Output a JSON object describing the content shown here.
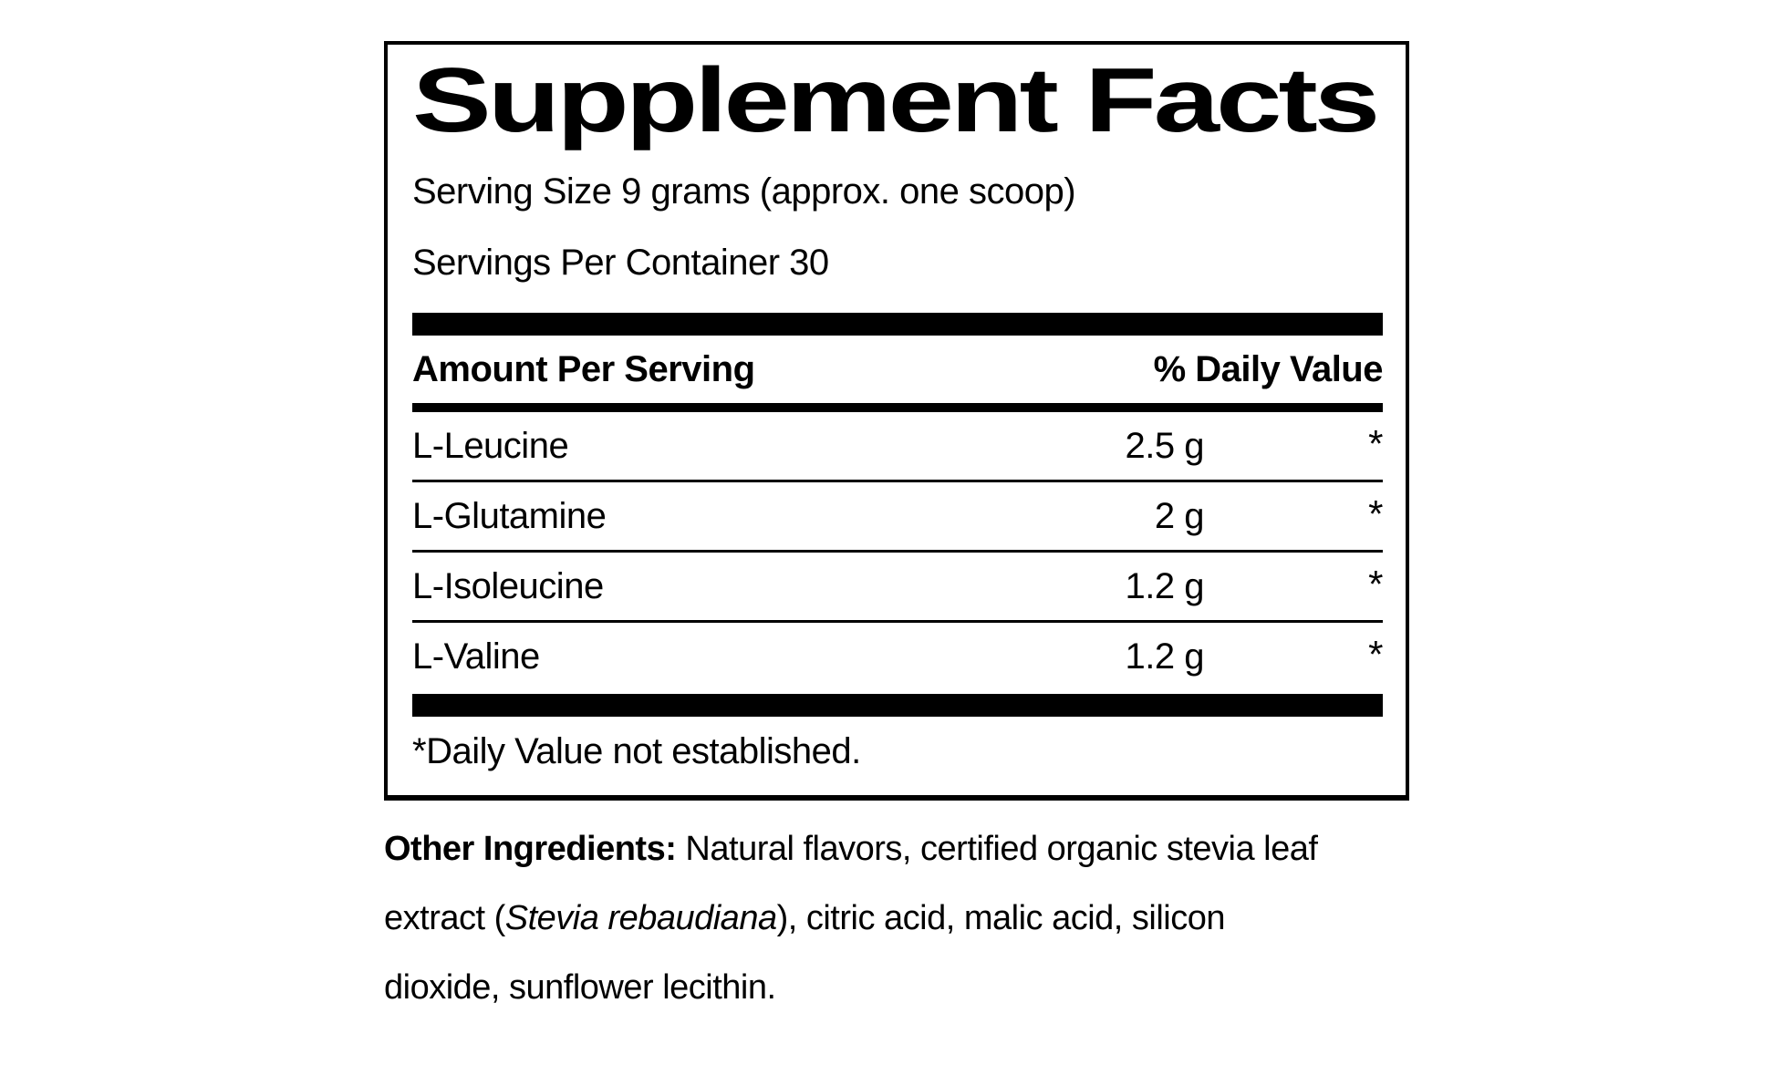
{
  "label": {
    "title": "Supplement Facts",
    "serving": {
      "size": "Serving Size 9 grams (approx. one scoop)",
      "per_container": "Servings Per Container 30"
    },
    "columns": {
      "amount": "Amount Per Serving",
      "daily_value": "% Daily Value"
    },
    "rows": [
      {
        "name": "L-Leucine",
        "amount": "2.5 g",
        "dv": "*"
      },
      {
        "name": "L-Glutamine",
        "amount": "2 g",
        "dv": "*"
      },
      {
        "name": "L-Isoleucine",
        "amount": "1.2 g",
        "dv": "*"
      },
      {
        "name": "L-Valine",
        "amount": "1.2 g",
        "dv": "*"
      }
    ],
    "footnote": "*Daily Value not established.",
    "other_ingredients": {
      "heading": "Other Ingredients:",
      "line1_rest": " Natural flavors, certified organic stevia leaf",
      "line2_pre": "extract (",
      "line2_italic": "Stevia rebaudiana",
      "line2_post": "), citric acid, malic acid, silicon",
      "line3": "dioxide, sunflower lecithin."
    },
    "colors": {
      "text": "#000000",
      "background": "#ffffff",
      "bar": "#000000"
    }
  }
}
